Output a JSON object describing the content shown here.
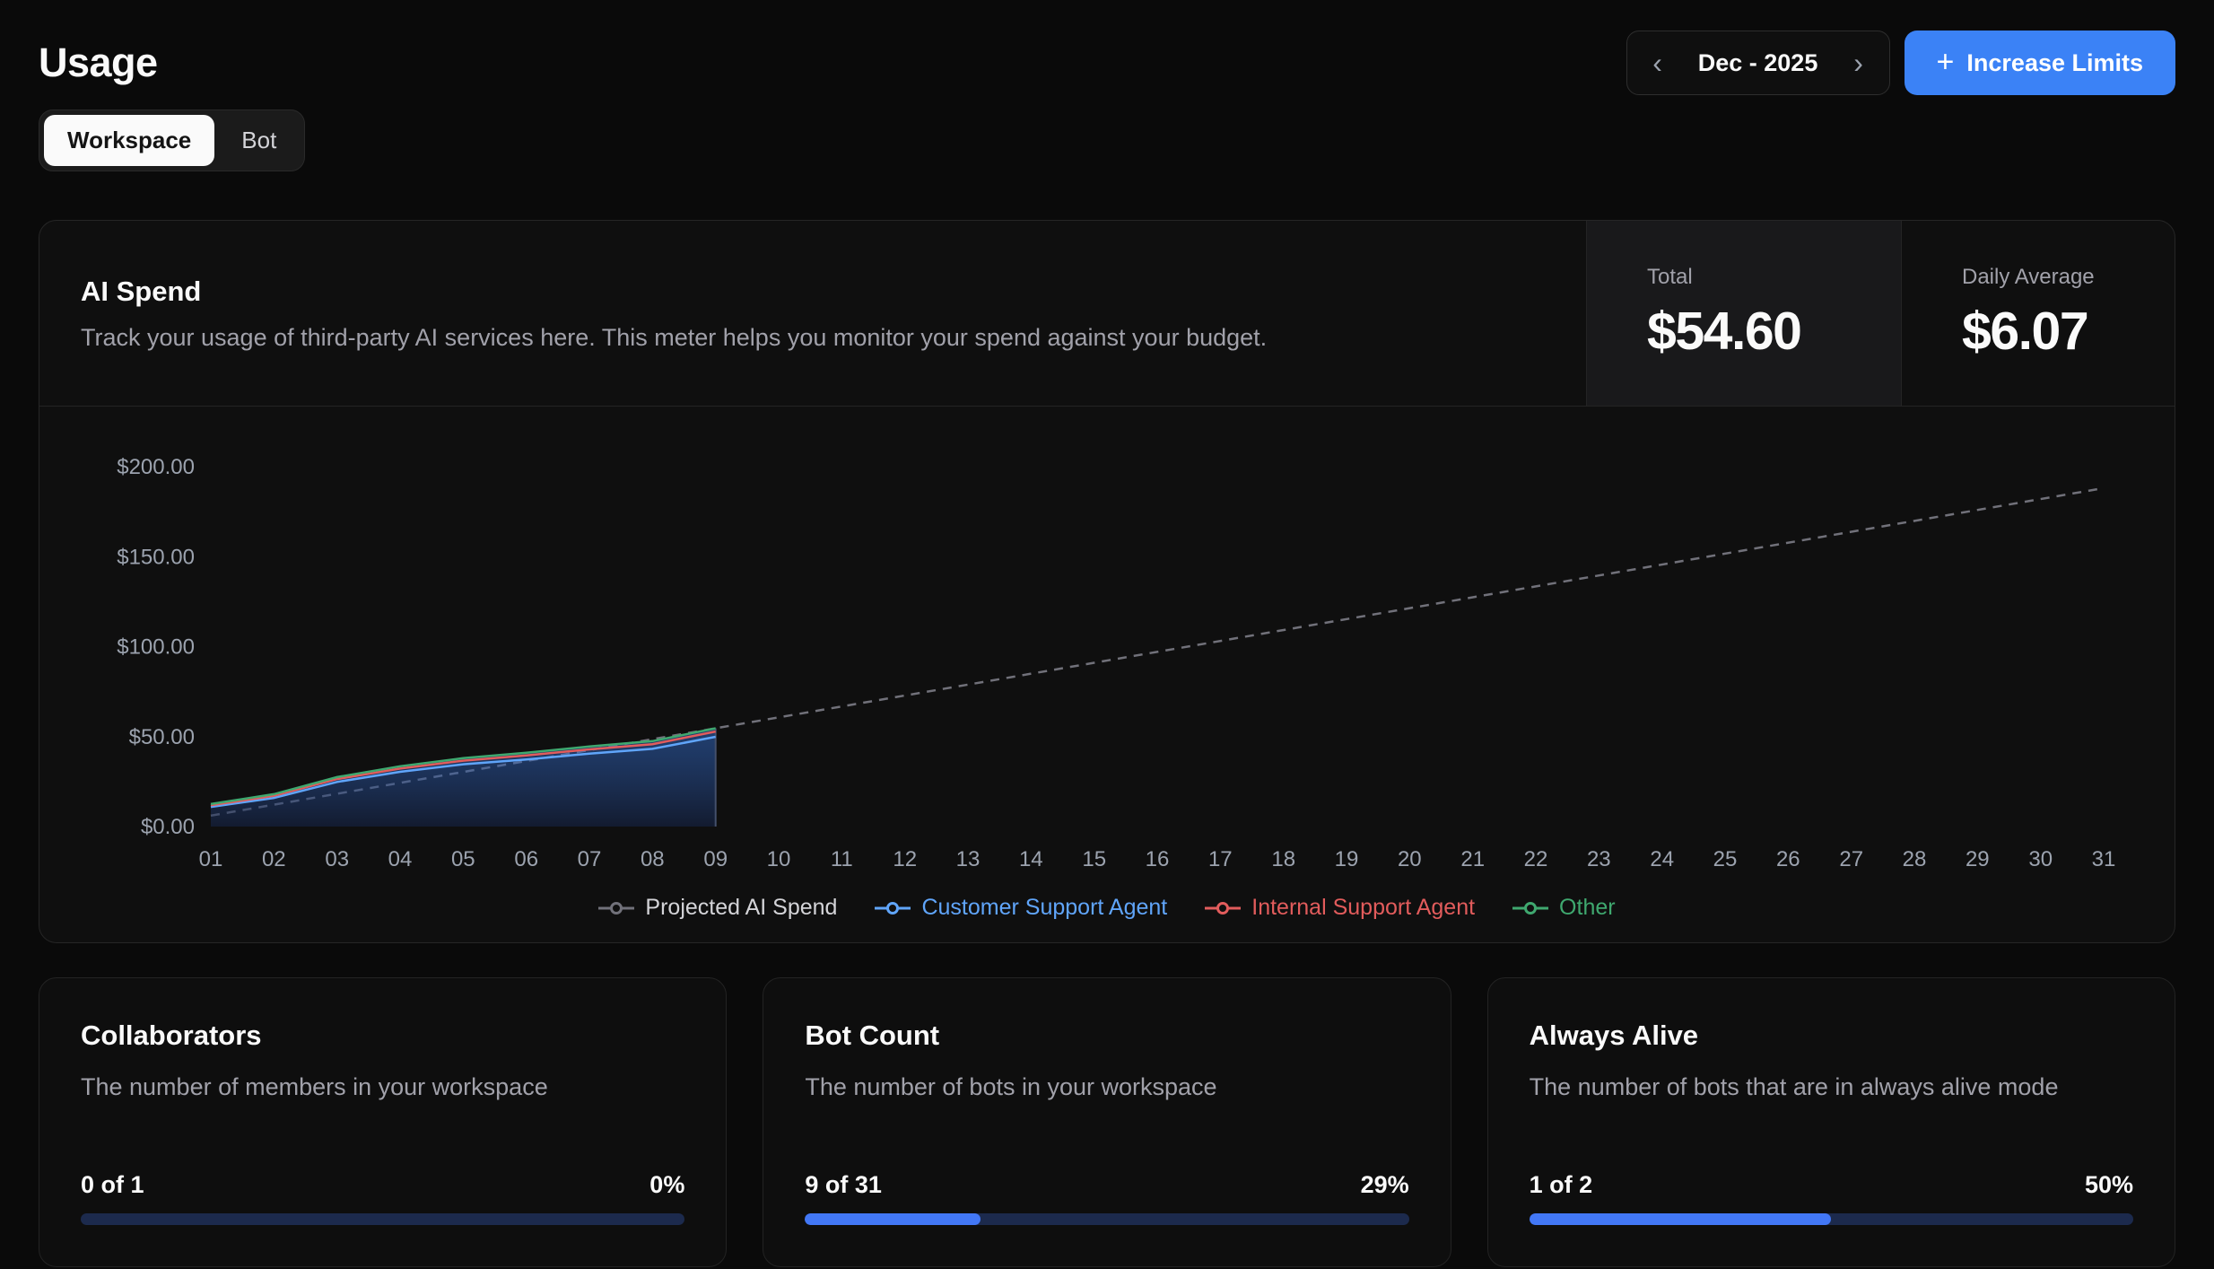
{
  "page": {
    "title": "Usage"
  },
  "header": {
    "date_nav": {
      "label": "Dec - 2025",
      "prev_icon": "‹",
      "next_icon": "›"
    },
    "increase_limits": {
      "label": "Increase Limits",
      "plus_icon": "+"
    }
  },
  "tabs": [
    {
      "label": "Workspace",
      "active": true
    },
    {
      "label": "Bot",
      "active": false
    }
  ],
  "spend": {
    "title": "AI Spend",
    "description": "Track your usage of third-party AI services here. This meter helps you monitor your spend against your budget.",
    "total": {
      "label": "Total",
      "value": "$54.60"
    },
    "daily_average": {
      "label": "Daily Average",
      "value": "$6.07"
    }
  },
  "chart_data": {
    "type": "area",
    "title": "AI Spend by day of month",
    "x": [
      "01",
      "02",
      "03",
      "04",
      "05",
      "06",
      "07",
      "08",
      "09",
      "10",
      "11",
      "12",
      "13",
      "14",
      "15",
      "16",
      "17",
      "18",
      "19",
      "20",
      "21",
      "22",
      "23",
      "24",
      "25",
      "26",
      "27",
      "28",
      "29",
      "30",
      "31"
    ],
    "y_ticks": [
      "$0.00",
      "$50.00",
      "$100.00",
      "$150.00",
      "$200.00"
    ],
    "y_max": 200,
    "ylim": [
      0,
      200
    ],
    "grid": false,
    "legend_position": "bottom",
    "data_end_day": 9,
    "projected": {
      "name": "Projected AI Spend",
      "color": "#71717a",
      "style": "dashed",
      "x": [
        1,
        31
      ],
      "values": [
        6.07,
        188.07
      ]
    },
    "series": [
      {
        "name": "Customer Support Agent",
        "color": "#60a5fa",
        "values": [
          10.9,
          15.9,
          24.8,
          30.4,
          34.6,
          37.3,
          40.5,
          43.2,
          49.9
        ]
      },
      {
        "name": "Internal Support Agent",
        "color": "#e25c5c",
        "values": [
          11.8,
          17.1,
          26.4,
          32.2,
          36.6,
          39.5,
          42.9,
          45.8,
          52.8
        ]
      },
      {
        "name": "Other",
        "color": "#3fa86f",
        "values": [
          12.5,
          18.0,
          27.5,
          33.5,
          38.0,
          41.0,
          44.5,
          47.5,
          54.6
        ]
      }
    ]
  },
  "metrics": [
    {
      "title": "Collaborators",
      "description": "The number of members in your workspace",
      "count": "0 of 1",
      "percent": "0%",
      "value": 0
    },
    {
      "title": "Bot Count",
      "description": "The number of bots in your workspace",
      "count": "9 of 31",
      "percent": "29%",
      "value": 29
    },
    {
      "title": "Always Alive",
      "description": "The number of bots that are in always alive mode",
      "count": "1 of 2",
      "percent": "50%",
      "value": 50
    }
  ]
}
